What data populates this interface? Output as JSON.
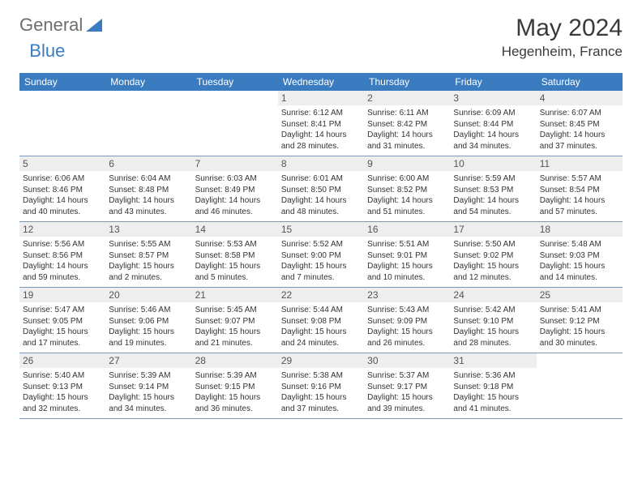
{
  "brand": {
    "part1": "General",
    "part2": "Blue"
  },
  "title": "May 2024",
  "location": "Hegenheim, France",
  "colors": {
    "header_bg": "#3b7bbf",
    "header_fg": "#ffffff",
    "daynum_bg": "#eeeeee",
    "border": "#7a99b8",
    "brand_gray": "#6d6d6d",
    "brand_blue": "#3b7bbf"
  },
  "dayNames": [
    "Sunday",
    "Monday",
    "Tuesday",
    "Wednesday",
    "Thursday",
    "Friday",
    "Saturday"
  ],
  "weeks": [
    [
      {
        "n": "",
        "sr": "",
        "ss": "",
        "dl": ""
      },
      {
        "n": "",
        "sr": "",
        "ss": "",
        "dl": ""
      },
      {
        "n": "",
        "sr": "",
        "ss": "",
        "dl": ""
      },
      {
        "n": "1",
        "sr": "Sunrise: 6:12 AM",
        "ss": "Sunset: 8:41 PM",
        "dl": "Daylight: 14 hours and 28 minutes."
      },
      {
        "n": "2",
        "sr": "Sunrise: 6:11 AM",
        "ss": "Sunset: 8:42 PM",
        "dl": "Daylight: 14 hours and 31 minutes."
      },
      {
        "n": "3",
        "sr": "Sunrise: 6:09 AM",
        "ss": "Sunset: 8:44 PM",
        "dl": "Daylight: 14 hours and 34 minutes."
      },
      {
        "n": "4",
        "sr": "Sunrise: 6:07 AM",
        "ss": "Sunset: 8:45 PM",
        "dl": "Daylight: 14 hours and 37 minutes."
      }
    ],
    [
      {
        "n": "5",
        "sr": "Sunrise: 6:06 AM",
        "ss": "Sunset: 8:46 PM",
        "dl": "Daylight: 14 hours and 40 minutes."
      },
      {
        "n": "6",
        "sr": "Sunrise: 6:04 AM",
        "ss": "Sunset: 8:48 PM",
        "dl": "Daylight: 14 hours and 43 minutes."
      },
      {
        "n": "7",
        "sr": "Sunrise: 6:03 AM",
        "ss": "Sunset: 8:49 PM",
        "dl": "Daylight: 14 hours and 46 minutes."
      },
      {
        "n": "8",
        "sr": "Sunrise: 6:01 AM",
        "ss": "Sunset: 8:50 PM",
        "dl": "Daylight: 14 hours and 48 minutes."
      },
      {
        "n": "9",
        "sr": "Sunrise: 6:00 AM",
        "ss": "Sunset: 8:52 PM",
        "dl": "Daylight: 14 hours and 51 minutes."
      },
      {
        "n": "10",
        "sr": "Sunrise: 5:59 AM",
        "ss": "Sunset: 8:53 PM",
        "dl": "Daylight: 14 hours and 54 minutes."
      },
      {
        "n": "11",
        "sr": "Sunrise: 5:57 AM",
        "ss": "Sunset: 8:54 PM",
        "dl": "Daylight: 14 hours and 57 minutes."
      }
    ],
    [
      {
        "n": "12",
        "sr": "Sunrise: 5:56 AM",
        "ss": "Sunset: 8:56 PM",
        "dl": "Daylight: 14 hours and 59 minutes."
      },
      {
        "n": "13",
        "sr": "Sunrise: 5:55 AM",
        "ss": "Sunset: 8:57 PM",
        "dl": "Daylight: 15 hours and 2 minutes."
      },
      {
        "n": "14",
        "sr": "Sunrise: 5:53 AM",
        "ss": "Sunset: 8:58 PM",
        "dl": "Daylight: 15 hours and 5 minutes."
      },
      {
        "n": "15",
        "sr": "Sunrise: 5:52 AM",
        "ss": "Sunset: 9:00 PM",
        "dl": "Daylight: 15 hours and 7 minutes."
      },
      {
        "n": "16",
        "sr": "Sunrise: 5:51 AM",
        "ss": "Sunset: 9:01 PM",
        "dl": "Daylight: 15 hours and 10 minutes."
      },
      {
        "n": "17",
        "sr": "Sunrise: 5:50 AM",
        "ss": "Sunset: 9:02 PM",
        "dl": "Daylight: 15 hours and 12 minutes."
      },
      {
        "n": "18",
        "sr": "Sunrise: 5:48 AM",
        "ss": "Sunset: 9:03 PM",
        "dl": "Daylight: 15 hours and 14 minutes."
      }
    ],
    [
      {
        "n": "19",
        "sr": "Sunrise: 5:47 AM",
        "ss": "Sunset: 9:05 PM",
        "dl": "Daylight: 15 hours and 17 minutes."
      },
      {
        "n": "20",
        "sr": "Sunrise: 5:46 AM",
        "ss": "Sunset: 9:06 PM",
        "dl": "Daylight: 15 hours and 19 minutes."
      },
      {
        "n": "21",
        "sr": "Sunrise: 5:45 AM",
        "ss": "Sunset: 9:07 PM",
        "dl": "Daylight: 15 hours and 21 minutes."
      },
      {
        "n": "22",
        "sr": "Sunrise: 5:44 AM",
        "ss": "Sunset: 9:08 PM",
        "dl": "Daylight: 15 hours and 24 minutes."
      },
      {
        "n": "23",
        "sr": "Sunrise: 5:43 AM",
        "ss": "Sunset: 9:09 PM",
        "dl": "Daylight: 15 hours and 26 minutes."
      },
      {
        "n": "24",
        "sr": "Sunrise: 5:42 AM",
        "ss": "Sunset: 9:10 PM",
        "dl": "Daylight: 15 hours and 28 minutes."
      },
      {
        "n": "25",
        "sr": "Sunrise: 5:41 AM",
        "ss": "Sunset: 9:12 PM",
        "dl": "Daylight: 15 hours and 30 minutes."
      }
    ],
    [
      {
        "n": "26",
        "sr": "Sunrise: 5:40 AM",
        "ss": "Sunset: 9:13 PM",
        "dl": "Daylight: 15 hours and 32 minutes."
      },
      {
        "n": "27",
        "sr": "Sunrise: 5:39 AM",
        "ss": "Sunset: 9:14 PM",
        "dl": "Daylight: 15 hours and 34 minutes."
      },
      {
        "n": "28",
        "sr": "Sunrise: 5:39 AM",
        "ss": "Sunset: 9:15 PM",
        "dl": "Daylight: 15 hours and 36 minutes."
      },
      {
        "n": "29",
        "sr": "Sunrise: 5:38 AM",
        "ss": "Sunset: 9:16 PM",
        "dl": "Daylight: 15 hours and 37 minutes."
      },
      {
        "n": "30",
        "sr": "Sunrise: 5:37 AM",
        "ss": "Sunset: 9:17 PM",
        "dl": "Daylight: 15 hours and 39 minutes."
      },
      {
        "n": "31",
        "sr": "Sunrise: 5:36 AM",
        "ss": "Sunset: 9:18 PM",
        "dl": "Daylight: 15 hours and 41 minutes."
      },
      {
        "n": "",
        "sr": "",
        "ss": "",
        "dl": ""
      }
    ]
  ]
}
